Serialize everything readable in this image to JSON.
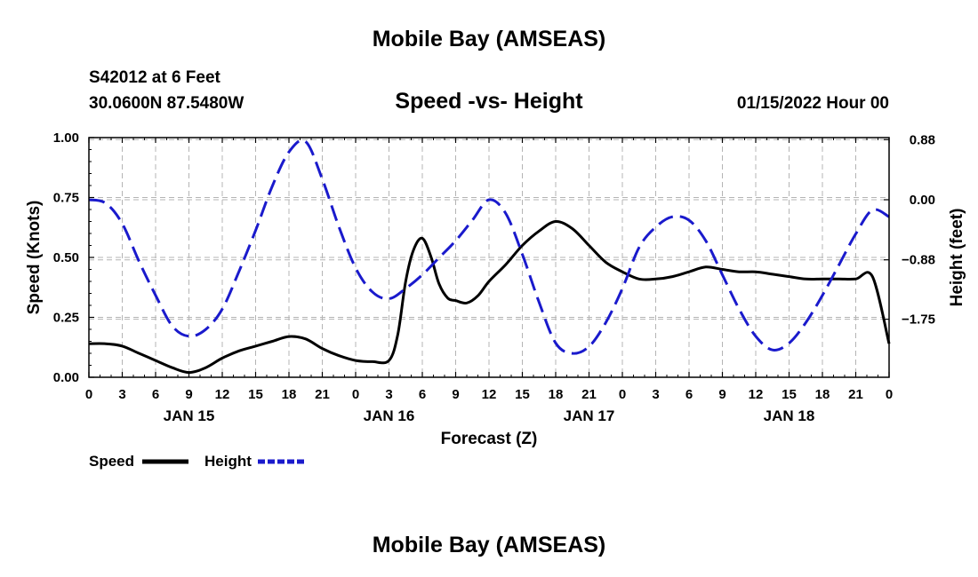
{
  "header": {
    "title": "Mobile Bay (AMSEAS)",
    "station": "S42012 at 6 Feet",
    "location": "30.0600N  87.5480W",
    "chart_title": "Speed -vs- Height",
    "run_time": "01/15/2022 Hour 00"
  },
  "footer": {
    "title": "Mobile Bay (AMSEAS)"
  },
  "colors": {
    "speed": "#000000",
    "height": "#1a1acc",
    "grid": "#b4b4b4"
  },
  "chart_data": {
    "type": "line",
    "title": "Speed -vs- Height",
    "xlabel": "Forecast (Z)",
    "ylabel": "Speed (Knots)",
    "y2label": "Height (feet)",
    "xlim": [
      0,
      72
    ],
    "ylim": [
      0,
      1.0
    ],
    "y2lim": [
      -2.6,
      0.91
    ],
    "x_ticks": [
      0,
      3,
      6,
      9,
      12,
      15,
      18,
      21,
      24,
      27,
      30,
      33,
      36,
      39,
      42,
      45,
      48,
      51,
      54,
      57,
      60,
      63,
      66,
      69,
      72
    ],
    "x_tick_labels": [
      "0",
      "3",
      "6",
      "9",
      "12",
      "15",
      "18",
      "21",
      "0",
      "3",
      "6",
      "9",
      "12",
      "15",
      "18",
      "21",
      "0",
      "3",
      "6",
      "9",
      "12",
      "15",
      "18",
      "21",
      "0"
    ],
    "day_labels": [
      {
        "x": 9,
        "label": "JAN 15"
      },
      {
        "x": 27,
        "label": "JAN 16"
      },
      {
        "x": 45,
        "label": "JAN 17"
      },
      {
        "x": 63,
        "label": "JAN 18"
      }
    ],
    "y_ticks": [
      0,
      0.25,
      0.5,
      0.75,
      1.0
    ],
    "y_tick_labels": [
      "0.00",
      "0.25",
      "0.50",
      "0.75",
      "1.00"
    ],
    "y2_ticks": [
      0.88,
      0.0,
      -0.88,
      -1.75
    ],
    "y2_tick_labels": [
      "0.88",
      "0.00",
      "−0.88",
      "−1.75"
    ],
    "legend": {
      "placement": "bottom-left",
      "entries": [
        "Speed",
        "Height"
      ]
    },
    "series": [
      {
        "name": "Speed",
        "axis": "left",
        "style": "solid",
        "x": [
          0,
          1.5,
          3,
          4.5,
          6,
          7.5,
          9,
          10.5,
          12,
          13.5,
          15,
          16.5,
          18,
          19.5,
          21,
          22.5,
          24,
          25.5,
          27,
          27.8,
          28.5,
          29.2,
          30,
          30.8,
          31.5,
          32.3,
          33,
          34,
          35,
          36,
          37.5,
          39,
          40.5,
          42,
          43.5,
          45,
          46.5,
          48,
          49.5,
          51,
          52.5,
          54,
          55.5,
          57,
          58.5,
          60,
          61.5,
          63,
          64.5,
          66,
          67.5,
          69,
          70.5,
          72
        ],
        "values": [
          0.14,
          0.14,
          0.13,
          0.1,
          0.07,
          0.04,
          0.02,
          0.04,
          0.08,
          0.11,
          0.13,
          0.15,
          0.17,
          0.16,
          0.12,
          0.09,
          0.07,
          0.065,
          0.07,
          0.18,
          0.4,
          0.53,
          0.58,
          0.5,
          0.39,
          0.33,
          0.32,
          0.31,
          0.34,
          0.4,
          0.47,
          0.55,
          0.61,
          0.65,
          0.62,
          0.55,
          0.48,
          0.44,
          0.41,
          0.41,
          0.42,
          0.44,
          0.46,
          0.45,
          0.44,
          0.44,
          0.43,
          0.42,
          0.41,
          0.41,
          0.41,
          0.41,
          0.42,
          0.14
        ]
      },
      {
        "name": "Height",
        "axis": "right",
        "style": "dashed",
        "x": [
          0,
          1.5,
          3,
          4.5,
          6,
          7.5,
          9,
          10.5,
          12,
          13.5,
          15,
          16.5,
          18,
          19.5,
          21,
          22.5,
          24,
          25.5,
          27,
          28.5,
          30,
          31.5,
          33,
          34.5,
          36,
          37.5,
          39,
          40.5,
          42,
          43.5,
          45,
          46.5,
          48,
          49.5,
          51,
          52.5,
          54,
          55.5,
          57,
          58.5,
          60,
          61.5,
          63,
          64.5,
          66,
          67.5,
          69,
          70.5,
          72
        ],
        "values": [
          0.0,
          -0.05,
          -0.35,
          -0.9,
          -1.4,
          -1.85,
          -2.0,
          -1.9,
          -1.6,
          -1.05,
          -0.45,
          0.2,
          0.7,
          0.85,
          0.3,
          -0.4,
          -1.0,
          -1.35,
          -1.45,
          -1.3,
          -1.1,
          -0.85,
          -0.6,
          -0.3,
          0.0,
          -0.2,
          -0.8,
          -1.5,
          -2.1,
          -2.25,
          -2.15,
          -1.8,
          -1.3,
          -0.7,
          -0.4,
          -0.25,
          -0.3,
          -0.6,
          -1.1,
          -1.6,
          -2.0,
          -2.2,
          -2.1,
          -1.8,
          -1.4,
          -0.95,
          -0.5,
          -0.15,
          -0.25
        ]
      }
    ]
  }
}
